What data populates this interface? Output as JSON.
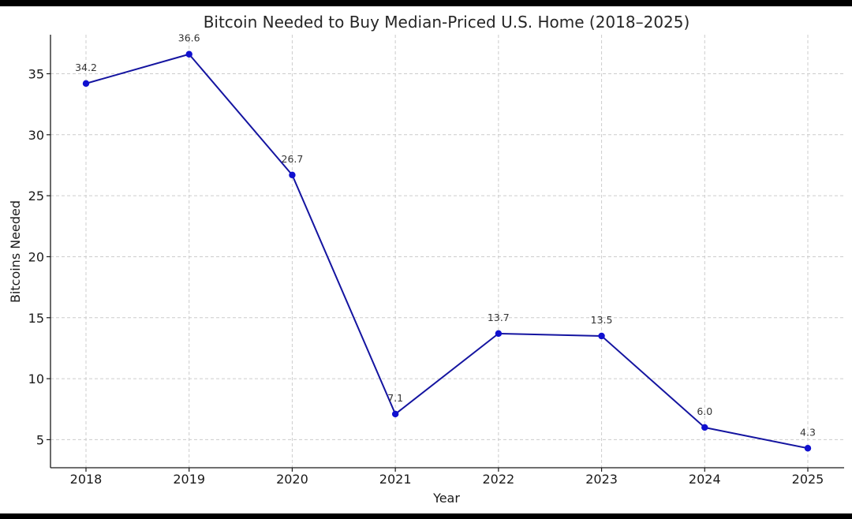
{
  "chart_data": {
    "type": "line",
    "title": "Bitcoin Needed to Buy Median-Priced U.S. Home (2018–2025)",
    "xlabel": "Year",
    "ylabel": "Bitcoins Needed",
    "x": [
      "2018",
      "2019",
      "2020",
      "2021",
      "2022",
      "2023",
      "2024",
      "2025"
    ],
    "series": [
      {
        "name": "Bitcoins Needed",
        "color": "#1414a0",
        "marker_color": "#1010d0",
        "values": [
          34.2,
          36.6,
          26.7,
          7.1,
          13.7,
          13.5,
          6.0,
          4.3
        ],
        "labels": [
          "34.2",
          "36.6",
          "26.7",
          "7.1",
          "13.7",
          "13.5",
          "6.0",
          "4.3"
        ]
      }
    ],
    "ylim": [
      2.7,
      38.2
    ],
    "yticks": [
      5,
      10,
      15,
      20,
      25,
      30,
      35
    ],
    "grid": true
  }
}
